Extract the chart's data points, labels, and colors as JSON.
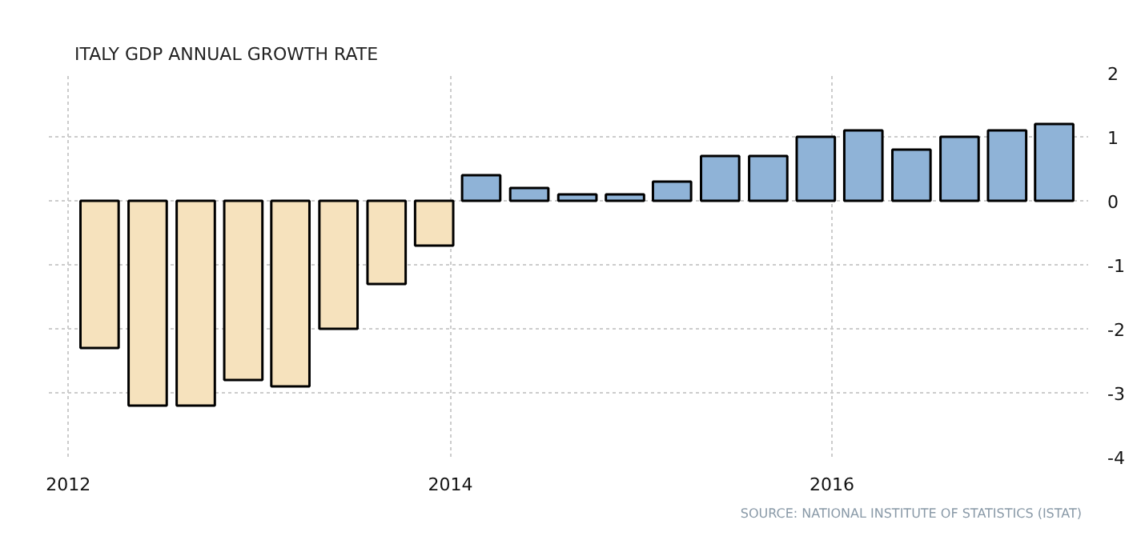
{
  "chart_data": {
    "type": "bar",
    "title": "ITALY GDP ANNUAL GROWTH RATE",
    "annotations": [
      "SOURCE: NATIONAL INSTITUTE OF STATISTICS (ISTAT)"
    ],
    "x": [
      "2012-03-01",
      "2012-06-01",
      "2012-09-01",
      "2012-12-01",
      "2013-03-01",
      "2013-06-01",
      "2013-09-01",
      "2013-12-01",
      "2014-03-01",
      "2014-06-01",
      "2014-09-01",
      "2014-12-01",
      "2015-03-01",
      "2015-06-01",
      "2015-09-01",
      "2015-12-01",
      "2016-03-01",
      "2016-06-01",
      "2016-09-01",
      "2016-12-01",
      "2017-03-01"
    ],
    "values": [
      -2.3,
      -3.2,
      -3.2,
      -2.8,
      -2.9,
      -2.0,
      -1.3,
      -0.7,
      0.4,
      0.2,
      0.1,
      0.1,
      0.3,
      0.7,
      0.7,
      1.0,
      1.1,
      0.8,
      1.0,
      1.1,
      1.2
    ],
    "colors": [
      "#f6e2bd",
      "#f6e2bd",
      "#f6e2bd",
      "#f6e2bd",
      "#f6e2bd",
      "#f6e2bd",
      "#f6e2bd",
      "#f6e2bd",
      "#8fb3d7",
      "#8fb3d7",
      "#8fb3d7",
      "#8fb3d7",
      "#8fb3d7",
      "#8fb3d7",
      "#8fb3d7",
      "#8fb3d7",
      "#8fb3d7",
      "#8fb3d7",
      "#8fb3d7",
      "#8fb3d7",
      "#8fb3d7"
    ],
    "xlim": [
      "2011-11-25",
      "2017-05-05"
    ],
    "xticks": [
      "2012",
      "2014",
      "2016"
    ],
    "ylim": [
      -4,
      2
    ],
    "yticks": [
      -4,
      -3,
      -2,
      -1,
      0,
      1,
      2
    ],
    "grid": true
  }
}
